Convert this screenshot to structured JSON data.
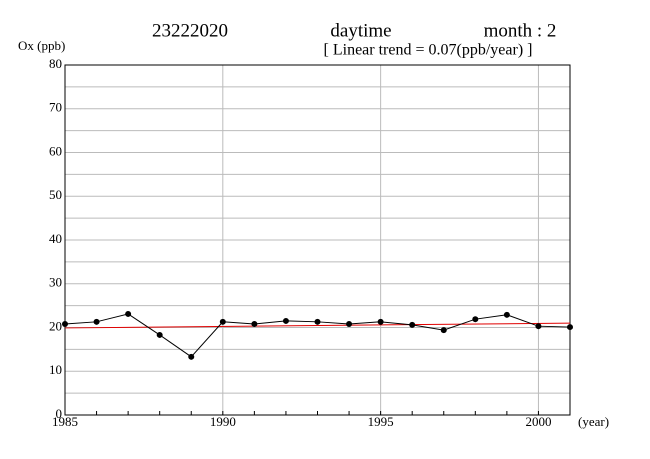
{
  "chart_data": {
    "type": "line",
    "title": "23222020",
    "period": "daytime",
    "month_label": "month : 2",
    "subtitle": "[ Linear trend = 0.07(ppb/year) ]",
    "y_label": "Ox (ppb)",
    "x_label": "(year)",
    "x": [
      1985,
      1986,
      1987,
      1988,
      1989,
      1990,
      1991,
      1992,
      1993,
      1994,
      1995,
      1996,
      1997,
      1998,
      1999,
      2000,
      2001
    ],
    "series": [
      {
        "color": "#000000",
        "values": [
          20.8,
          21.3,
          23.1,
          18.3,
          13.3,
          21.3,
          20.8,
          21.5,
          21.3,
          20.8,
          21.3,
          20.6,
          19.4,
          21.9,
          22.9,
          20.3,
          20.1
        ]
      }
    ],
    "trend": {
      "color": "#e00000",
      "x": [
        1985,
        2001
      ],
      "values": [
        19.9,
        21.0
      ]
    },
    "xlim": [
      1985,
      2001
    ],
    "ylim": [
      0,
      80
    ],
    "xticks": [
      1985,
      1990,
      1995,
      2000
    ],
    "yticks": [
      0,
      10,
      20,
      30,
      40,
      50,
      60,
      70,
      80
    ],
    "yminor": [
      5,
      15,
      25,
      35,
      45,
      55,
      65,
      75
    ],
    "grid": true
  }
}
